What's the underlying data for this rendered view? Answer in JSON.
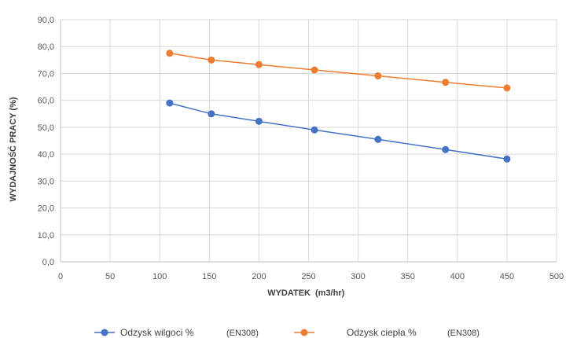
{
  "chart_data": {
    "type": "line",
    "title": "",
    "xlabel": "WYDATEK",
    "xlabel_unit": "(m3/hr)",
    "ylabel": "WYDAJNOŚĆ PRACY (%)",
    "xlim": [
      0,
      500
    ],
    "ylim": [
      0,
      90
    ],
    "x_ticks": [
      "0",
      "50",
      "100",
      "150",
      "200",
      "250",
      "300",
      "350",
      "400",
      "450",
      "500"
    ],
    "y_ticks": [
      "0,0",
      "10,0",
      "20,0",
      "30,0",
      "40,0",
      "50,0",
      "60,0",
      "70,0",
      "80,0",
      "90,0"
    ],
    "grid": true,
    "legend_position": "bottom",
    "x": [
      110,
      152,
      200,
      256,
      320,
      388,
      450
    ],
    "series": [
      {
        "name": "Odzysk wilgoci %",
        "standard": "(EN308)",
        "color": "#4472C4",
        "values": [
          59.0,
          55.0,
          52.2,
          49.0,
          45.5,
          41.7,
          38.2
        ]
      },
      {
        "name": "Odzysk ciepła %",
        "standard": "(EN308)",
        "color": "#ED7D31",
        "values": [
          77.5,
          75.0,
          73.3,
          71.3,
          69.1,
          66.7,
          64.6
        ]
      }
    ]
  }
}
